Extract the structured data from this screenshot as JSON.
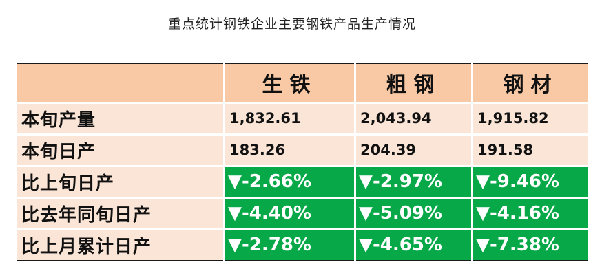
{
  "title": "重点统计钢铁企业主要钢铁产品生产情况",
  "table": {
    "corner": "",
    "columns": [
      "生铁",
      "粗钢",
      "钢材"
    ],
    "rows": [
      {
        "label": "本旬产量",
        "values": [
          "1,832.61",
          "2,043.94",
          "1,915.82"
        ]
      },
      {
        "label": "本旬日产",
        "values": [
          "183.26",
          "204.39",
          "191.58"
        ]
      },
      {
        "label": "比上旬日产",
        "values": [
          "▼-2.66%",
          "▼-2.97%",
          "▼-9.46%"
        ]
      },
      {
        "label": "比去年同旬日产",
        "values": [
          "▼-4.40%",
          "▼-5.09%",
          "▼-4.16%"
        ]
      },
      {
        "label": "比上月累计日产",
        "values": [
          "▼-2.78%",
          "▼-4.65%",
          "▼-7.38%"
        ]
      }
    ]
  },
  "colors": {
    "header_bg": "#f9c9a6",
    "cell_bg": "#fbe5d6",
    "decline_bg": "#07a847",
    "decline_text": "#ffffff"
  }
}
